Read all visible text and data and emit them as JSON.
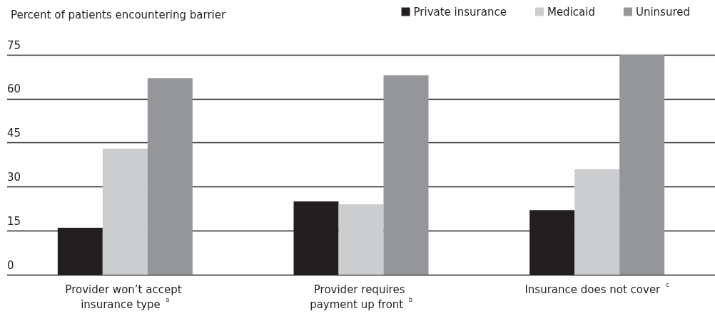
{
  "chart_data": {
    "type": "bar",
    "ylabel": "Percent of patients encountering barrier",
    "categories": [
      "Provider won’t accept insurance type $^{a}$",
      "Provider requires payment up front $^{b}$",
      "Insurance does not cover $^{c}$"
    ],
    "series": [
      {
        "name": "Private insurance",
        "color": "#231f20",
        "values": [
          16,
          25,
          22
        ]
      },
      {
        "name": "Medicaid",
        "color": "#cccdcf",
        "values": [
          43,
          24,
          36
        ]
      },
      {
        "name": "Uninsured",
        "color": "#959699",
        "values": [
          67,
          68,
          75
        ]
      }
    ],
    "ylim": [
      0,
      75
    ],
    "yticks": [
      0,
      15,
      30,
      45,
      60,
      75
    ],
    "grid": "y",
    "legend": "top right"
  }
}
